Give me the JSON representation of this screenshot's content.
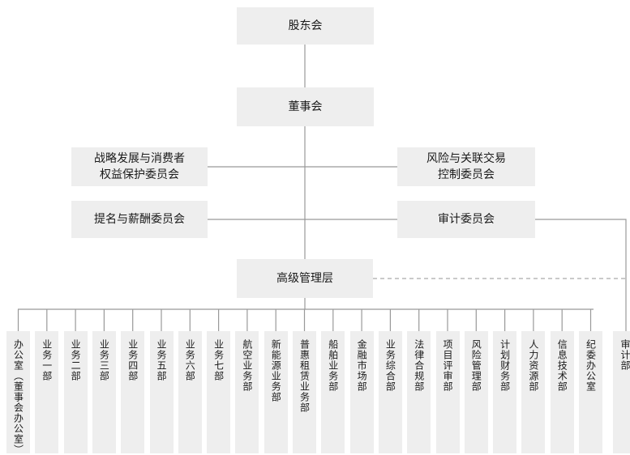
{
  "nodes": {
    "shareholders": "股东会",
    "board": "董事会",
    "strategy_committee": [
      "战略发展与消费者",
      "权益保护委员会"
    ],
    "risk_committee": [
      "风险与关联交易",
      "控制委员会"
    ],
    "nomination_committee": "提名与薪酬委员会",
    "audit_committee": "审计委员会",
    "senior_management": "高级管理层"
  },
  "departments": [
    "办公室（董事会办公室）",
    "业务一部",
    "业务二部",
    "业务三部",
    "业务四部",
    "业务五部",
    "业务六部",
    "业务七部",
    "航空业务部",
    "新能源业务部",
    "普惠租赁业务部",
    "船舶业务部",
    "金融市场部",
    "业务综合部",
    "法律合规部",
    "项目评审部",
    "风险管理部",
    "计划财务部",
    "人力资源部",
    "信息技术部",
    "纪委办公室",
    "审计部"
  ],
  "colors": {
    "box": "#eeeeee",
    "line": "#999999",
    "dashed": "#aaaaaa"
  }
}
